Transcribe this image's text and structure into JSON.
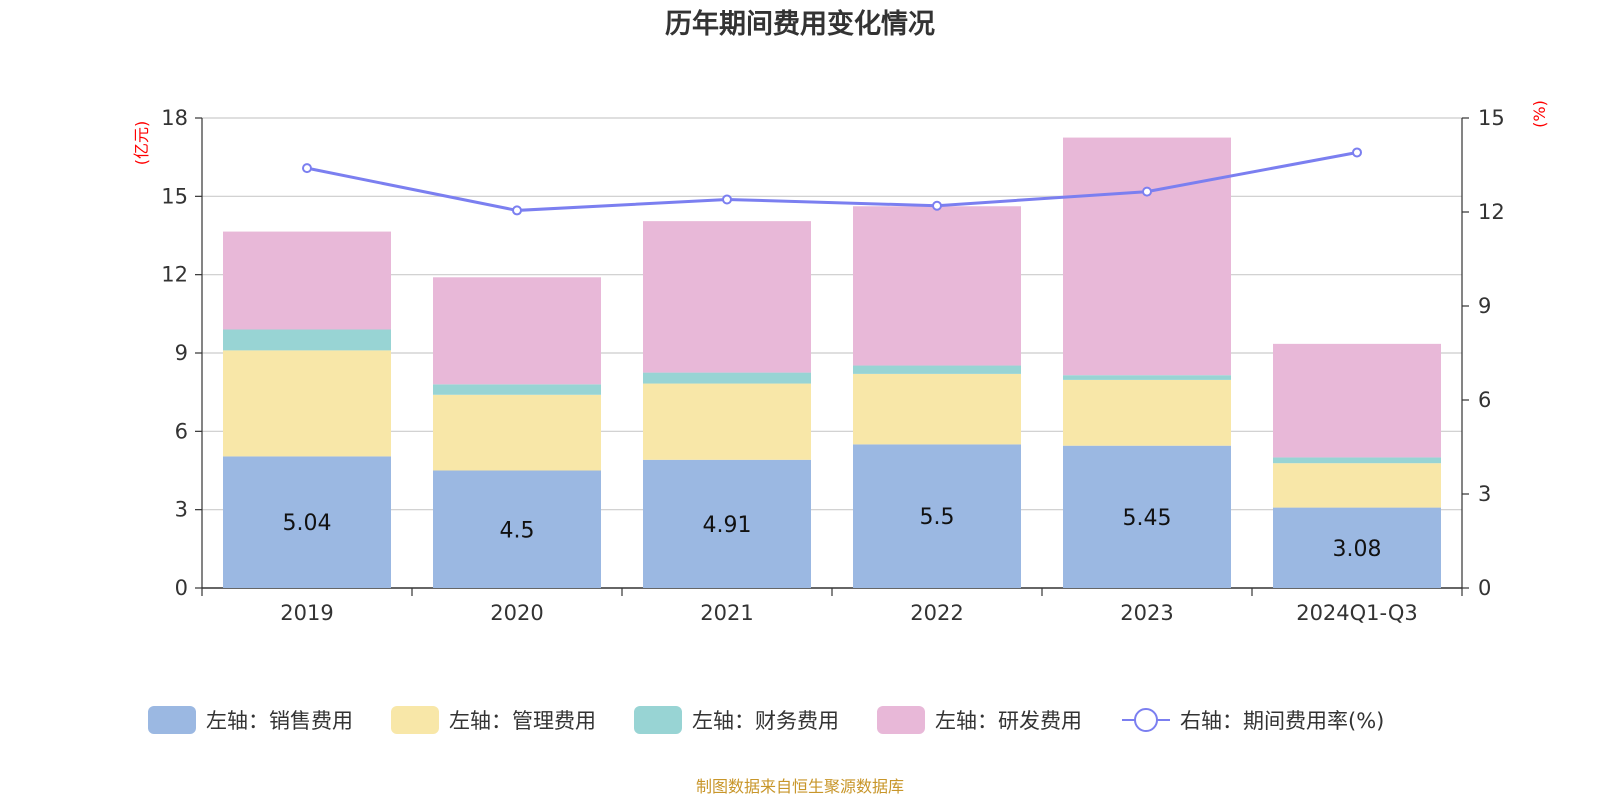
{
  "chart_data": {
    "type": "bar",
    "title": "历年期间费用变化情况",
    "categories": [
      "2019",
      "2020",
      "2021",
      "2022",
      "2023",
      "2024Q1-Q3"
    ],
    "left_axis": {
      "unit": "(亿元)",
      "ylim": [
        0,
        18
      ],
      "ticks": [
        0,
        3,
        6,
        9,
        12,
        15,
        18
      ]
    },
    "right_axis": {
      "unit": "(%)",
      "ylim": [
        0,
        15
      ],
      "ticks": [
        0,
        3,
        6,
        9,
        12,
        15
      ]
    },
    "series": [
      {
        "name": "左轴：销售费用",
        "stack": true,
        "color": "#9bb8e2",
        "values": [
          5.04,
          4.5,
          4.91,
          5.5,
          5.45,
          3.08
        ],
        "labels": [
          "5.04",
          "4.5",
          "4.91",
          "5.5",
          "5.45",
          "3.08"
        ]
      },
      {
        "name": "左轴：管理费用",
        "stack": true,
        "color": "#f8e7a8",
        "values": [
          4.06,
          2.9,
          2.92,
          2.7,
          2.52,
          1.7
        ]
      },
      {
        "name": "左轴：财务费用",
        "stack": true,
        "color": "#98d4d4",
        "values": [
          0.8,
          0.4,
          0.42,
          0.32,
          0.18,
          0.22
        ]
      },
      {
        "name": "左轴：研发费用",
        "stack": true,
        "color": "#e8b8d8",
        "values": [
          3.75,
          4.1,
          5.8,
          6.1,
          9.1,
          4.35
        ]
      },
      {
        "name": "右轴：期间费用率(%)",
        "type": "line",
        "axis": "right",
        "color": "#7b7ff0",
        "values": [
          13.4,
          12.05,
          12.4,
          12.2,
          12.65,
          13.9
        ]
      }
    ],
    "grid": true,
    "legend_position": "bottom",
    "source": "制图数据来自恒生聚源数据库"
  }
}
